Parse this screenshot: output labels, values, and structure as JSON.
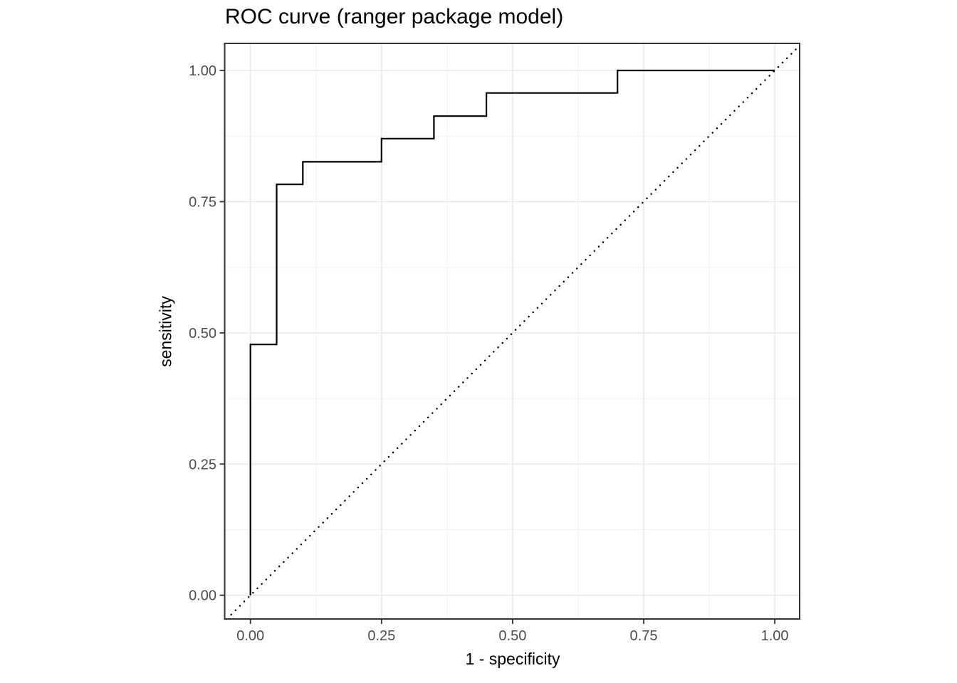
{
  "chart_data": {
    "type": "line",
    "title": "ROC curve (ranger package model)",
    "xlabel": "1 - specificity",
    "ylabel": "sensitivity",
    "xlim": [
      0,
      1
    ],
    "ylim": [
      0,
      1
    ],
    "xticks": [
      0,
      0.25,
      0.5,
      0.75,
      1
    ],
    "yticks": [
      0,
      0.25,
      0.5,
      0.75,
      1
    ],
    "x_tick_labels": [
      "0.00",
      "0.25",
      "0.50",
      "0.75",
      "1.00"
    ],
    "y_tick_labels": [
      "0.00",
      "0.25",
      "0.50",
      "0.75",
      "1.00"
    ],
    "x_minor_gridlines": [
      0.125,
      0.375,
      0.625,
      0.875
    ],
    "y_minor_gridlines": [
      0.125,
      0.375,
      0.625,
      0.875
    ],
    "grid": "major+minor",
    "legend_position": "none",
    "series": [
      {
        "name": "ROC step curve",
        "type": "step",
        "linetype": "solid",
        "color": "#000000",
        "points": [
          [
            0,
            0
          ],
          [
            0,
            0.478
          ],
          [
            0.05,
            0.478
          ],
          [
            0.05,
            0.783
          ],
          [
            0.1,
            0.783
          ],
          [
            0.1,
            0.826
          ],
          [
            0.25,
            0.826
          ],
          [
            0.25,
            0.87
          ],
          [
            0.35,
            0.87
          ],
          [
            0.35,
            0.913
          ],
          [
            0.45,
            0.913
          ],
          [
            0.45,
            0.957
          ],
          [
            0.7,
            0.957
          ],
          [
            0.7,
            1
          ],
          [
            1,
            1
          ]
        ]
      },
      {
        "name": "chance diagonal (y = x)",
        "type": "line",
        "linetype": "dotted",
        "color": "#000000",
        "points": [
          [
            0,
            0
          ],
          [
            1,
            1
          ]
        ],
        "spans_full_panel": true
      }
    ],
    "colors": {
      "background": "#ffffff",
      "panel_background": "#ffffff",
      "panel_border": "#333333",
      "grid_major": "#ebebeb",
      "grid_minor": "#f0f0f0",
      "tick_mark": "#333333",
      "axis_text": "#4d4d4d",
      "axis_title": "#000000",
      "title": "#000000"
    }
  }
}
